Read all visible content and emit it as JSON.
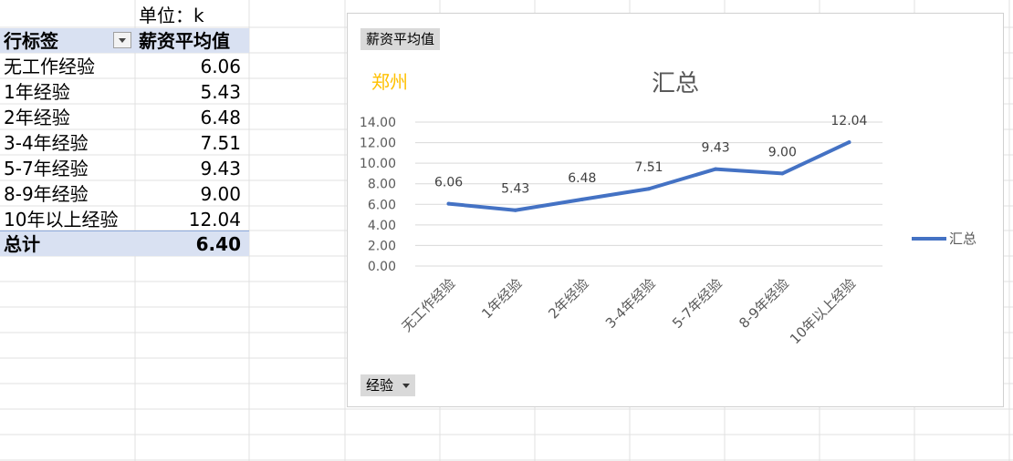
{
  "sheet": {
    "unit_label": "单位：k",
    "header": {
      "row_label": "行标签",
      "value_label": "薪资平均值"
    },
    "rows": [
      {
        "label": "无工作经验",
        "value": "6.06"
      },
      {
        "label": "1年经验",
        "value": "5.43"
      },
      {
        "label": "2年经验",
        "value": "6.48"
      },
      {
        "label": "3-4年经验",
        "value": "7.51"
      },
      {
        "label": "5-7年经验",
        "value": "9.43"
      },
      {
        "label": "8-9年经验",
        "value": "9.00"
      },
      {
        "label": "10年以上经验",
        "value": "12.04"
      }
    ],
    "total": {
      "label": "总计",
      "value": "6.40"
    }
  },
  "chart_buttons": {
    "value_field": "薪资平均值",
    "axis_field": "经验"
  },
  "colors": {
    "series": "#4472c4",
    "city": "#ffc000",
    "header_band": "#d9e1f2",
    "grid": "#d9d9d9"
  },
  "chart_data": {
    "type": "line",
    "title": "汇总",
    "annotation": "郑州",
    "categories": [
      "无工作经验",
      "1年经验",
      "2年经验",
      "3-4年经验",
      "5-7年经验",
      "8-9年经验",
      "10年以上经验"
    ],
    "series": [
      {
        "name": "汇总",
        "values": [
          6.06,
          5.43,
          6.48,
          7.51,
          9.43,
          9.0,
          12.04
        ]
      }
    ],
    "data_labels": [
      "6.06",
      "5.43",
      "6.48",
      "7.51",
      "9.43",
      "9.00",
      "12.04"
    ],
    "yticks": [
      "0.00",
      "2.00",
      "4.00",
      "6.00",
      "8.00",
      "10.00",
      "12.00",
      "14.00"
    ],
    "ylim": [
      0,
      14
    ],
    "grid": true,
    "legend": "right"
  }
}
